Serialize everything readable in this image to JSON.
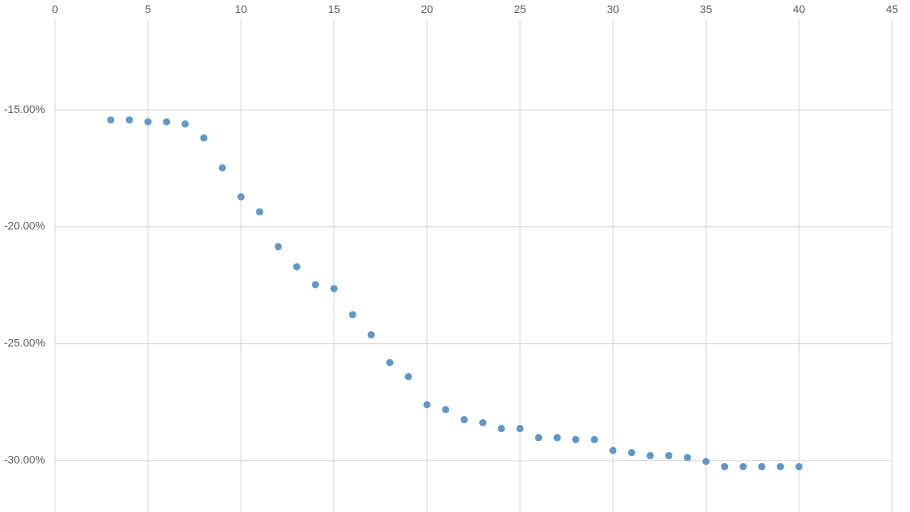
{
  "chart_data": {
    "type": "scatter",
    "x": [
      3,
      4,
      5,
      6,
      7,
      8,
      9,
      10,
      11,
      12,
      13,
      14,
      15,
      16,
      17,
      18,
      19,
      20,
      21,
      22,
      23,
      24,
      25,
      26,
      27,
      28,
      29,
      30,
      31,
      32,
      33,
      34,
      35,
      36,
      37,
      38,
      39,
      40
    ],
    "series": [
      {
        "color": "#5f98c4",
        "values": [
          -15.43,
          -15.43,
          -15.51,
          -15.51,
          -15.6,
          -16.2,
          -17.48,
          -18.72,
          -19.36,
          -20.85,
          -21.71,
          -22.48,
          -22.65,
          -23.76,
          -24.62,
          -25.81,
          -26.41,
          -27.61,
          -27.82,
          -28.25,
          -28.38,
          -28.63,
          -28.63,
          -29.02,
          -29.02,
          -29.1,
          -29.1,
          -29.57,
          -29.66,
          -29.79,
          -29.79,
          -29.87,
          -30.04,
          -30.26,
          -30.26,
          -30.26,
          -30.26,
          -30.26
        ]
      }
    ],
    "xlim": [
      0,
      45
    ],
    "xticks": [
      0,
      5,
      10,
      15,
      20,
      25,
      30,
      35,
      40,
      45
    ],
    "ylim": [
      -32.2,
      -10.3
    ],
    "yticks": [
      {
        "value": -15,
        "label": "-15.00%"
      },
      {
        "value": -20,
        "label": "-20.00%"
      },
      {
        "value": -25,
        "label": "-25.00%"
      },
      {
        "value": -30,
        "label": "-30.00%"
      }
    ],
    "grid": true
  }
}
